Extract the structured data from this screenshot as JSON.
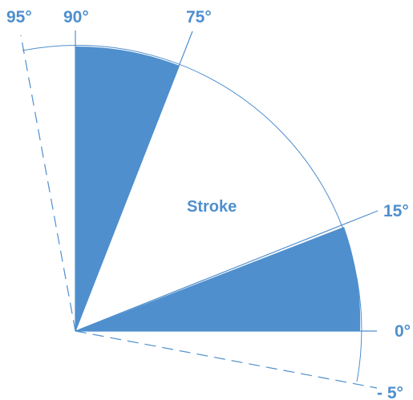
{
  "diagram": {
    "center_label": "Stroke",
    "angle_labels": {
      "a95": "95°",
      "a90": "90°",
      "a75": "75°",
      "a15": "15°",
      "a0": "0°",
      "aneg5": "- 5°"
    },
    "colors": {
      "fill": "#4f8fcd",
      "stroke": "#4f8fcd",
      "background": "#ffffff"
    }
  }
}
